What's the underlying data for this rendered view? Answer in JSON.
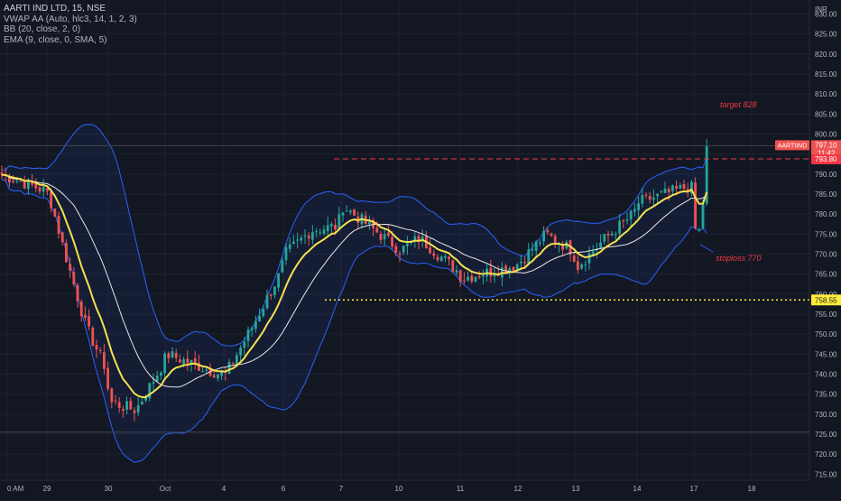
{
  "legend": {
    "symbol": "AARTI IND LTD, 15, NSE",
    "vwap": "VWAP AA (Auto, hlc3, 14, 1, 2, 3)",
    "bb": "BB (20, close, 2, 0)",
    "ema": "EMA (9, close, 0, SMA, 5)"
  },
  "currency": "INR",
  "colors": {
    "background": "#131722",
    "grid": "#1e2230",
    "bollinger": "#2962ff",
    "ema": "#f5e050",
    "sma_line": "#e8e8e8",
    "up_candle": "#26a69a",
    "down_candle": "#ef5350",
    "target_line": "#f23645",
    "support_line": "#ffeb3b",
    "annotation": "#f23645"
  },
  "chart_data": {
    "type": "candlestick",
    "title": "AARTI IND LTD, 15, NSE",
    "y_ticks": [
      715,
      720,
      725,
      730,
      735,
      740,
      745,
      750,
      755,
      760,
      765,
      770,
      775,
      780,
      785,
      790,
      795,
      800,
      805,
      810,
      815,
      820,
      825,
      830
    ],
    "ylim": [
      713.5,
      833.5
    ],
    "x_ticks": [
      "0 AM",
      "29",
      "30",
      "Oct",
      "4",
      "6",
      "7",
      "10",
      "11",
      "12",
      "13",
      "14",
      "17",
      "18"
    ],
    "close_keypoints": [
      {
        "x": "Sep 28",
        "y": 790
      },
      {
        "x": "Sep 28",
        "y": 786
      },
      {
        "x": "Sep 29",
        "y": 785
      },
      {
        "x": "Sep 29",
        "y": 768
      },
      {
        "x": "Sep 29",
        "y": 752
      },
      {
        "x": "Sep 29",
        "y": 742
      },
      {
        "x": "Sep 30",
        "y": 733
      },
      {
        "x": "Sep 30",
        "y": 731
      },
      {
        "x": "Sep 30",
        "y": 742
      },
      {
        "x": "Oct 3",
        "y": 745
      },
      {
        "x": "Oct 3",
        "y": 740
      },
      {
        "x": "Oct 4",
        "y": 740
      },
      {
        "x": "Oct 4",
        "y": 752
      },
      {
        "x": "Oct 4",
        "y": 765
      },
      {
        "x": "Oct 6",
        "y": 770
      },
      {
        "x": "Oct 6",
        "y": 776
      },
      {
        "x": "Oct 6",
        "y": 777
      },
      {
        "x": "Oct 7",
        "y": 782
      },
      {
        "x": "Oct 7",
        "y": 777
      },
      {
        "x": "Oct 7",
        "y": 772
      },
      {
        "x": "Oct 10",
        "y": 771
      },
      {
        "x": "Oct 10",
        "y": 774
      },
      {
        "x": "Oct 10",
        "y": 770
      },
      {
        "x": "Oct 10",
        "y": 766
      },
      {
        "x": "Oct 11",
        "y": 764
      },
      {
        "x": "Oct 11",
        "y": 767
      },
      {
        "x": "Oct 12",
        "y": 768
      },
      {
        "x": "Oct 12",
        "y": 775
      },
      {
        "x": "Oct 12",
        "y": 771
      },
      {
        "x": "Oct 13",
        "y": 767
      },
      {
        "x": "Oct 13",
        "y": 774
      },
      {
        "x": "Oct 13",
        "y": 780
      },
      {
        "x": "Oct 14",
        "y": 783
      },
      {
        "x": "Oct 14",
        "y": 785
      },
      {
        "x": "Oct 14",
        "y": 787
      },
      {
        "x": "Oct 17",
        "y": 786
      },
      {
        "x": "Oct 17",
        "y": 771
      },
      {
        "x": "Oct 17",
        "y": 781
      },
      {
        "x": "Oct 17",
        "y": 797.1
      }
    ],
    "price_tag": {
      "symbol": "AARTIIND",
      "price": "797.10",
      "countdown": "11:42"
    },
    "levels": [
      {
        "name": "target_line",
        "value": 793.8,
        "label": "793.80",
        "style": "dashed"
      },
      {
        "name": "support_line",
        "value": 758.55,
        "label": "758.55",
        "style": "dotted"
      },
      {
        "name": "high_line",
        "value": 797.1,
        "label": "",
        "style": "solid"
      },
      {
        "name": "low_line",
        "value": 725.5,
        "label": "",
        "style": "solid"
      }
    ],
    "annotations": [
      {
        "text": "target 828"
      },
      {
        "text": "stoploss 770"
      }
    ]
  }
}
